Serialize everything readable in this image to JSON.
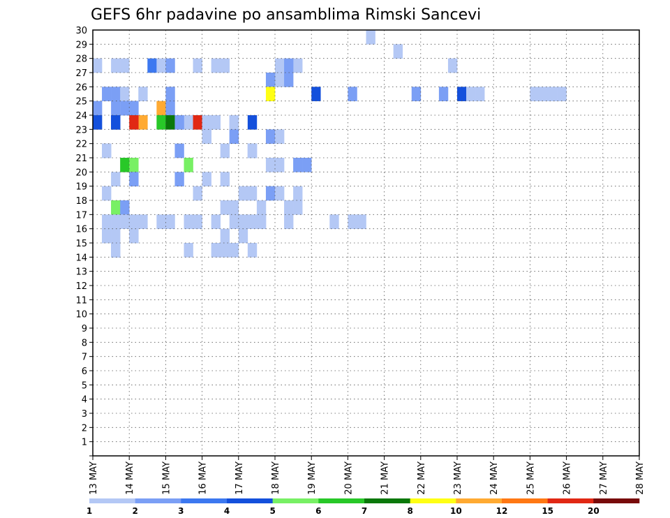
{
  "chart_data": {
    "type": "heatmap",
    "title": "GEFS 6hr padavine po ansamblima Rimski Sancevi",
    "xlabel": "",
    "ylabel": "",
    "x_tick_labels": [
      "13 MAY",
      "14 MAY",
      "15 MAY",
      "16 MAY",
      "17 MAY",
      "18 MAY",
      "19 MAY",
      "20 MAY",
      "21 MAY",
      "22 MAY",
      "23 MAY",
      "24 MAY",
      "25 MAY",
      "26 MAY",
      "27 MAY",
      "28 MAY"
    ],
    "y_tick_labels": [
      "1",
      "2",
      "3",
      "4",
      "5",
      "6",
      "7",
      "8",
      "9",
      "10",
      "11",
      "12",
      "13",
      "14",
      "15",
      "16",
      "17",
      "18",
      "19",
      "20",
      "21",
      "22",
      "23",
      "24",
      "25",
      "26",
      "27",
      "28",
      "29",
      "30"
    ],
    "n_columns": 60,
    "n_rows": 30,
    "grid": true,
    "colorbar": {
      "labels": [
        "1",
        "2",
        "3",
        "4",
        "5",
        "6",
        "7",
        "8",
        "10",
        "12",
        "15",
        "20"
      ],
      "colors": [
        "#b4c8f5",
        "#7b9ff5",
        "#3c78f0",
        "#1450dc",
        "#78f064",
        "#28c828",
        "#0a780a",
        "#ffff14",
        "#ffaa32",
        "#ff7814",
        "#e12814",
        "#780a0a"
      ]
    },
    "cells": [
      [
        31,
        30,
        0
      ],
      [
        34,
        29,
        0
      ],
      [
        23,
        28,
        0
      ],
      [
        40,
        28,
        0
      ],
      [
        1,
        28,
        0
      ],
      [
        3,
        28,
        0
      ],
      [
        4,
        28,
        0
      ],
      [
        7,
        28,
        2
      ],
      [
        21,
        28,
        0
      ],
      [
        22,
        28,
        1
      ],
      [
        8,
        28,
        0
      ],
      [
        9,
        28,
        1
      ],
      [
        12,
        28,
        0
      ],
      [
        14,
        28,
        0
      ],
      [
        15,
        28,
        0
      ],
      [
        21,
        27,
        0
      ],
      [
        22,
        27,
        1
      ],
      [
        20,
        27,
        1
      ],
      [
        20,
        26,
        7
      ],
      [
        41,
        26,
        3
      ],
      [
        39,
        26,
        1
      ],
      [
        36,
        26,
        1
      ],
      [
        42,
        26,
        0
      ],
      [
        43,
        26,
        0
      ],
      [
        49,
        26,
        0
      ],
      [
        50,
        26,
        0
      ],
      [
        51,
        26,
        0
      ],
      [
        52,
        26,
        0
      ],
      [
        6,
        26,
        0
      ],
      [
        9,
        26,
        1
      ],
      [
        25,
        26,
        3
      ],
      [
        29,
        26,
        1
      ],
      [
        2,
        26,
        1
      ],
      [
        3,
        26,
        1
      ],
      [
        4,
        26,
        0
      ],
      [
        8,
        25,
        8
      ],
      [
        9,
        25,
        1
      ],
      [
        3,
        25,
        1
      ],
      [
        4,
        25,
        1
      ],
      [
        5,
        25,
        3
      ],
      [
        5,
        25,
        1
      ],
      [
        1,
        25,
        1
      ],
      [
        4,
        25,
        0
      ],
      [
        4,
        25,
        1
      ],
      [
        8,
        24,
        5
      ],
      [
        9,
        24,
        6
      ],
      [
        6,
        24,
        8
      ],
      [
        5,
        24,
        10
      ],
      [
        11,
        24,
        0
      ],
      [
        13,
        24,
        0
      ],
      [
        14,
        24,
        0
      ],
      [
        12,
        24,
        10
      ],
      [
        10,
        24,
        1
      ],
      [
        18,
        24,
        3
      ],
      [
        1,
        24,
        3
      ],
      [
        3,
        24,
        3
      ],
      [
        3,
        24,
        3
      ],
      [
        16,
        24,
        0
      ],
      [
        16,
        24,
        0
      ],
      [
        16,
        24,
        0
      ],
      [
        13,
        24,
        1
      ],
      [
        13,
        24,
        0
      ],
      [
        13,
        24,
        0
      ],
      [
        13,
        23,
        0
      ],
      [
        20,
        23,
        1
      ],
      [
        16,
        23,
        0
      ],
      [
        16,
        23,
        1
      ],
      [
        13,
        23,
        0
      ],
      [
        21,
        23,
        0
      ],
      [
        18,
        22,
        1
      ],
      [
        18,
        22,
        0
      ],
      [
        2,
        22,
        0
      ],
      [
        2,
        22,
        0
      ],
      [
        15,
        22,
        0
      ],
      [
        10,
        22,
        1
      ],
      [
        20,
        21,
        0
      ],
      [
        21,
        21,
        0
      ],
      [
        23,
        21,
        1
      ],
      [
        24,
        21,
        1
      ],
      [
        4,
        21,
        5
      ],
      [
        5,
        21,
        4
      ],
      [
        11,
        21,
        4
      ],
      [
        5,
        20,
        1
      ],
      [
        10,
        20,
        1
      ],
      [
        13,
        20,
        0
      ],
      [
        3,
        20,
        0
      ],
      [
        15,
        20,
        0
      ],
      [
        17,
        19,
        0
      ],
      [
        18,
        19,
        0
      ],
      [
        20,
        19,
        1
      ],
      [
        2,
        19,
        0
      ],
      [
        21,
        19,
        0
      ],
      [
        23,
        19,
        0
      ],
      [
        12,
        19,
        0
      ],
      [
        3,
        18,
        0
      ],
      [
        22,
        18,
        0
      ],
      [
        23,
        18,
        0
      ],
      [
        15,
        18,
        0
      ],
      [
        16,
        18,
        0
      ],
      [
        19,
        18,
        0
      ],
      [
        3,
        18,
        4
      ],
      [
        4,
        18,
        1
      ],
      [
        4,
        17,
        0
      ],
      [
        9,
        17,
        0
      ],
      [
        11,
        17,
        0
      ],
      [
        17,
        17,
        0
      ],
      [
        14,
        17,
        0
      ],
      [
        16,
        17,
        0
      ],
      [
        12,
        17,
        0
      ],
      [
        22,
        17,
        0
      ],
      [
        18,
        17,
        0
      ],
      [
        19,
        17,
        0
      ],
      [
        3,
        17,
        0
      ],
      [
        6,
        17,
        0
      ],
      [
        8,
        17,
        0
      ],
      [
        5,
        17,
        0
      ],
      [
        19,
        17,
        0
      ],
      [
        29,
        17,
        0
      ],
      [
        30,
        17,
        0
      ],
      [
        27,
        17,
        0
      ],
      [
        2,
        17,
        0
      ],
      [
        17,
        16,
        0
      ],
      [
        3,
        16,
        0
      ],
      [
        5,
        16,
        0
      ],
      [
        5,
        16,
        0
      ],
      [
        2,
        16,
        0
      ],
      [
        2,
        16,
        0
      ],
      [
        15,
        16,
        0
      ],
      [
        3,
        15,
        0
      ],
      [
        3,
        15,
        0
      ],
      [
        3,
        15,
        1
      ],
      [
        11,
        15,
        0
      ],
      [
        14,
        15,
        0
      ],
      [
        15,
        15,
        0
      ],
      [
        18,
        15,
        0
      ],
      [
        3,
        15,
        0
      ],
      [
        3,
        15,
        0
      ],
      [
        3,
        15,
        0
      ],
      [
        16,
        15,
        0
      ]
    ],
    "ylim": [
      0,
      30
    ]
  }
}
